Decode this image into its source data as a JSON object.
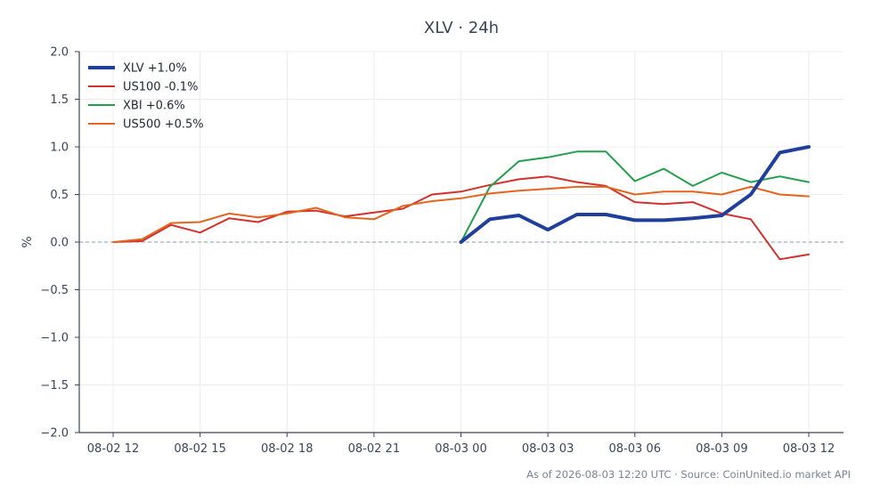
{
  "chart_data": {
    "type": "line",
    "title": "XLV · 24h",
    "ylabel": "%",
    "xlabel": "",
    "ylim": [
      -2.0,
      2.0
    ],
    "y_ticks": [
      -2.0,
      -1.5,
      -1.0,
      -0.5,
      0.0,
      0.5,
      1.0,
      1.5,
      2.0
    ],
    "y_tick_labels": [
      "−2.0",
      "−1.5",
      "−1.0",
      "−0.5",
      "0.0",
      "0.5",
      "1.0",
      "1.5",
      "2.0"
    ],
    "x_range": [
      "2026-08-02 12:00",
      "2026-08-03 12:00"
    ],
    "x_ticks": [
      {
        "x": "2026-08-02 12:00",
        "label": "08-02 12"
      },
      {
        "x": "2026-08-02 15:00",
        "label": "08-02 15"
      },
      {
        "x": "2026-08-02 18:00",
        "label": "08-02 18"
      },
      {
        "x": "2026-08-02 21:00",
        "label": "08-02 21"
      },
      {
        "x": "2026-08-03 00:00",
        "label": "08-03 00"
      },
      {
        "x": "2026-08-03 03:00",
        "label": "08-03 03"
      },
      {
        "x": "2026-08-03 06:00",
        "label": "08-03 06"
      },
      {
        "x": "2026-08-03 09:00",
        "label": "08-03 09"
      },
      {
        "x": "2026-08-03 12:00",
        "label": "08-03 12"
      }
    ],
    "grid": true,
    "reference_line": 0.0,
    "legend_position": "top-left",
    "series": [
      {
        "name": "XLV +1.0%",
        "color": "#1f3f9a",
        "emphasis": true,
        "x": [
          "2026-08-03 00:00",
          "2026-08-03 01:00",
          "2026-08-03 02:00",
          "2026-08-03 03:00",
          "2026-08-03 04:00",
          "2026-08-03 05:00",
          "2026-08-03 06:00",
          "2026-08-03 07:00",
          "2026-08-03 08:00",
          "2026-08-03 09:00",
          "2026-08-03 10:00",
          "2026-08-03 11:00",
          "2026-08-03 12:00"
        ],
        "values": [
          0.0,
          0.24,
          0.28,
          0.13,
          0.29,
          0.29,
          0.23,
          0.23,
          0.25,
          0.28,
          0.5,
          0.94,
          1.0
        ]
      },
      {
        "name": "US100 -0.1%",
        "color": "#d3322c",
        "emphasis": false,
        "x": [
          "2026-08-02 12:00",
          "2026-08-02 13:00",
          "2026-08-02 14:00",
          "2026-08-02 15:00",
          "2026-08-02 16:00",
          "2026-08-02 17:00",
          "2026-08-02 18:00",
          "2026-08-02 19:00",
          "2026-08-02 20:00",
          "2026-08-02 21:00",
          "2026-08-02 22:00",
          "2026-08-02 23:00",
          "2026-08-03 00:00",
          "2026-08-03 01:00",
          "2026-08-03 02:00",
          "2026-08-03 03:00",
          "2026-08-03 04:00",
          "2026-08-03 05:00",
          "2026-08-03 06:00",
          "2026-08-03 07:00",
          "2026-08-03 08:00",
          "2026-08-03 09:00",
          "2026-08-03 10:00",
          "2026-08-03 11:00",
          "2026-08-03 12:00"
        ],
        "values": [
          0.0,
          0.01,
          0.18,
          0.1,
          0.25,
          0.21,
          0.32,
          0.33,
          0.27,
          0.31,
          0.35,
          0.5,
          0.53,
          0.6,
          0.66,
          0.69,
          0.63,
          0.59,
          0.42,
          0.4,
          0.42,
          0.3,
          0.24,
          -0.18,
          -0.13
        ]
      },
      {
        "name": "XBI +0.6%",
        "color": "#23a04a",
        "emphasis": false,
        "x": [
          "2026-08-03 00:00",
          "2026-08-03 01:00",
          "2026-08-03 02:00",
          "2026-08-03 03:00",
          "2026-08-03 04:00",
          "2026-08-03 05:00",
          "2026-08-03 06:00",
          "2026-08-03 07:00",
          "2026-08-03 08:00",
          "2026-08-03 09:00",
          "2026-08-03 10:00",
          "2026-08-03 11:00",
          "2026-08-03 12:00"
        ],
        "values": [
          0.0,
          0.58,
          0.85,
          0.89,
          0.95,
          0.95,
          0.64,
          0.77,
          0.59,
          0.73,
          0.63,
          0.69,
          0.63
        ]
      },
      {
        "name": "US500 +0.5%",
        "color": "#e3651e",
        "emphasis": false,
        "x": [
          "2026-08-02 12:00",
          "2026-08-02 13:00",
          "2026-08-02 14:00",
          "2026-08-02 15:00",
          "2026-08-02 16:00",
          "2026-08-02 17:00",
          "2026-08-02 18:00",
          "2026-08-02 19:00",
          "2026-08-02 20:00",
          "2026-08-02 21:00",
          "2026-08-02 22:00",
          "2026-08-02 23:00",
          "2026-08-03 00:00",
          "2026-08-03 01:00",
          "2026-08-03 02:00",
          "2026-08-03 03:00",
          "2026-08-03 04:00",
          "2026-08-03 05:00",
          "2026-08-03 06:00",
          "2026-08-03 07:00",
          "2026-08-03 08:00",
          "2026-08-03 09:00",
          "2026-08-03 10:00",
          "2026-08-03 11:00",
          "2026-08-03 12:00"
        ],
        "values": [
          0.0,
          0.03,
          0.2,
          0.21,
          0.3,
          0.26,
          0.3,
          0.36,
          0.26,
          0.24,
          0.38,
          0.43,
          0.46,
          0.51,
          0.54,
          0.56,
          0.58,
          0.58,
          0.5,
          0.53,
          0.53,
          0.5,
          0.58,
          0.5,
          0.48
        ]
      }
    ]
  },
  "footer": {
    "text": "As of 2026-08-03 12:20 UTC · Source: CoinUnited.io market API"
  }
}
